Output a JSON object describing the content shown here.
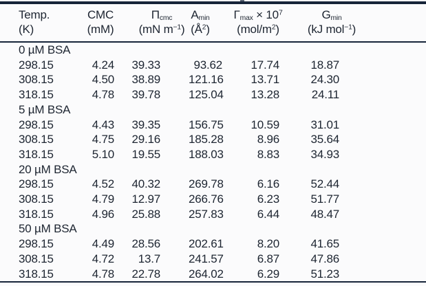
{
  "colors": {
    "background": "#fbfbfc",
    "text": "#1d2531",
    "rule": "#162439"
  },
  "table": {
    "columns": [
      {
        "id": "temp",
        "line1": [
          {
            "t": "Temp."
          }
        ],
        "line2": [
          {
            "t": "(K)"
          }
        ]
      },
      {
        "id": "cmc",
        "line1": [
          {
            "t": "CMC"
          }
        ],
        "line2": [
          {
            "t": "(mM)"
          }
        ]
      },
      {
        "id": "pi-cmc",
        "line1": [
          {
            "t": "Π"
          },
          {
            "sub": "cmc"
          }
        ],
        "line2": [
          {
            "t": "(mN m"
          },
          {
            "sup": "−1"
          },
          {
            "t": ")"
          }
        ]
      },
      {
        "id": "a-min",
        "line1": [
          {
            "t": "A"
          },
          {
            "sub": "min"
          }
        ],
        "line2": [
          {
            "t": "(Å"
          },
          {
            "sup": "2"
          },
          {
            "t": ")"
          }
        ]
      },
      {
        "id": "gamma-max",
        "line1": [
          {
            "t": "Γ"
          },
          {
            "sub": "max"
          },
          {
            "t": " × 10"
          },
          {
            "sup": "7"
          }
        ],
        "line2": [
          {
            "t": "(mol/m"
          },
          {
            "sup": "2"
          },
          {
            "t": ")"
          }
        ]
      },
      {
        "id": "g-min",
        "line1": [
          {
            "t": "G"
          },
          {
            "sub": "min"
          }
        ],
        "line2": [
          {
            "t": "(kJ mol"
          },
          {
            "sup": "−1"
          },
          {
            "t": ")"
          }
        ]
      }
    ],
    "sections": [
      {
        "label": "0 µM BSA",
        "rows": [
          [
            "298.15",
            "4.24",
            "39.33",
            "93.62",
            "17.74",
            "18.87"
          ],
          [
            "308.15",
            "4.50",
            "38.89",
            "121.16",
            "13.71",
            "24.30"
          ],
          [
            "318.15",
            "4.78",
            "39.78",
            "125.04",
            "13.28",
            "24.11"
          ]
        ]
      },
      {
        "label": "5 µM BSA",
        "rows": [
          [
            "298.15",
            "4.43",
            "39.35",
            "156.75",
            "10.59",
            "31.01"
          ],
          [
            "308.15",
            "4.75",
            "29.16",
            "185.28",
            "8.96",
            "35.64"
          ],
          [
            "318.15",
            "5.10",
            "19.55",
            "188.03",
            "8.83",
            "34.93"
          ]
        ]
      },
      {
        "label": "20 µM BSA",
        "rows": [
          [
            "298.15",
            "4.52",
            "40.32",
            "269.78",
            "6.16",
            "52.44"
          ],
          [
            "308.15",
            "4.79",
            "12.97",
            "266.76",
            "6.23",
            "51.77"
          ],
          [
            "318.15",
            "4.96",
            "25.88",
            "257.83",
            "6.44",
            "48.47"
          ]
        ]
      },
      {
        "label": "50 µM BSA",
        "rows": [
          [
            "298.15",
            "4.49",
            "28.56",
            "202.61",
            "8.20",
            "41.65"
          ],
          [
            "308.15",
            "4.72",
            "13.7",
            "241.57",
            "6.87",
            "47.86"
          ],
          [
            "318.15",
            "4.78",
            "22.78",
            "264.02",
            "6.29",
            "51.23"
          ]
        ]
      }
    ]
  }
}
